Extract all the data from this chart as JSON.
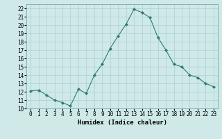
{
  "x": [
    0,
    1,
    2,
    3,
    4,
    5,
    6,
    7,
    8,
    9,
    10,
    11,
    12,
    13,
    14,
    15,
    16,
    17,
    18,
    19,
    20,
    21,
    22,
    23
  ],
  "y": [
    12.1,
    12.2,
    11.6,
    11.0,
    10.7,
    10.3,
    12.3,
    11.8,
    14.0,
    15.3,
    17.2,
    18.7,
    20.1,
    21.9,
    21.5,
    20.9,
    18.5,
    17.0,
    15.3,
    15.0,
    14.0,
    13.7,
    13.0,
    12.6
  ],
  "line_color": "#2e7d6e",
  "marker": "D",
  "marker_size": 2.0,
  "bg_color": "#cfe8e8",
  "grid_color": "#b0d4d4",
  "xlabel": "Humidex (Indice chaleur)",
  "xlim": [
    -0.5,
    23.5
  ],
  "ylim": [
    10,
    22.5
  ],
  "yticks": [
    10,
    11,
    12,
    13,
    14,
    15,
    16,
    17,
    18,
    19,
    20,
    21,
    22
  ],
  "xticks": [
    0,
    1,
    2,
    3,
    4,
    5,
    6,
    7,
    8,
    9,
    10,
    11,
    12,
    13,
    14,
    15,
    16,
    17,
    18,
    19,
    20,
    21,
    22,
    23
  ]
}
